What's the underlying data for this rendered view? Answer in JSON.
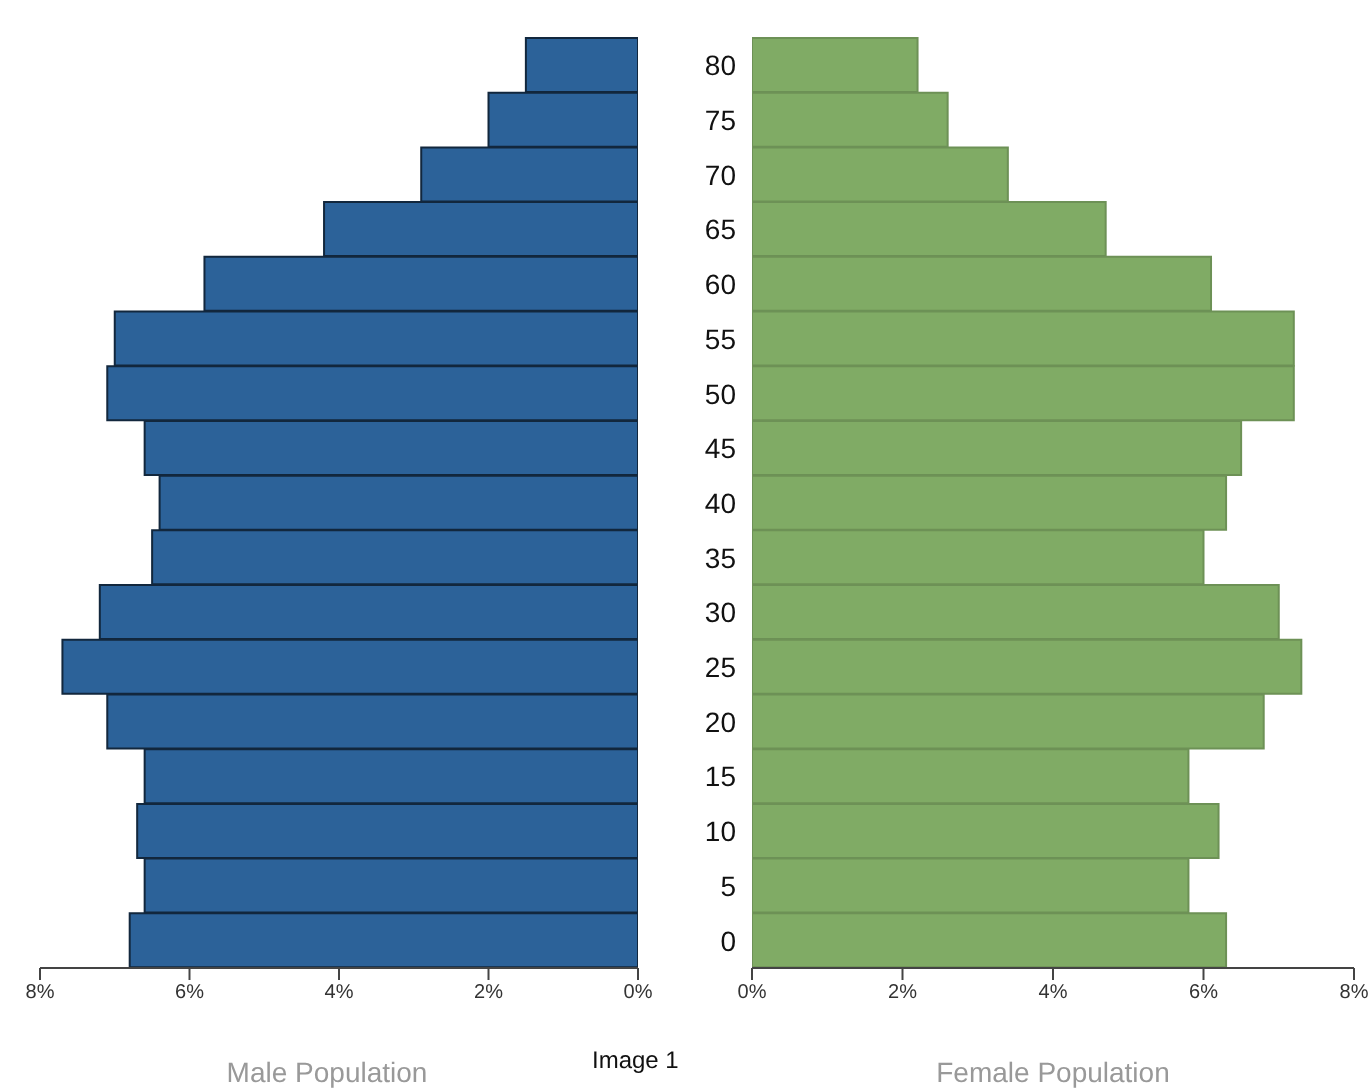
{
  "chart_data": [
    {
      "type": "bar",
      "orientation": "horizontal",
      "xlabel": "Male Population",
      "categories": [
        "80",
        "75",
        "70",
        "65",
        "60",
        "55",
        "50",
        "45",
        "40",
        "35",
        "30",
        "25",
        "20",
        "15",
        "10",
        "5",
        "0"
      ],
      "series": [
        {
          "color": "#2c6299",
          "values": [
            1.5,
            2.0,
            2.9,
            4.2,
            5.8,
            7.0,
            7.1,
            6.6,
            6.4,
            6.5,
            7.2,
            7.7,
            7.1,
            6.6,
            6.7,
            6.6,
            6.8
          ]
        }
      ],
      "xlim": [
        8,
        0
      ],
      "xticks": [
        {
          "value": 8,
          "label": "8%"
        },
        {
          "value": 6,
          "label": "6%"
        },
        {
          "value": 4,
          "label": "4%"
        },
        {
          "value": 2,
          "label": "2%"
        },
        {
          "value": 0,
          "label": "0%"
        }
      ],
      "tick_labels": "x",
      "grid": false,
      "legend": false
    },
    {
      "type": "bar",
      "orientation": "horizontal",
      "xlabel": "Female Population",
      "annotations": [
        "Image 1"
      ],
      "categories": [
        "80",
        "75",
        "70",
        "65",
        "60",
        "55",
        "50",
        "45",
        "40",
        "35",
        "30",
        "25",
        "20",
        "15",
        "10",
        "5",
        "0"
      ],
      "series": [
        {
          "color": "#80ab65",
          "values": [
            2.2,
            2.6,
            3.4,
            4.7,
            6.1,
            7.2,
            7.2,
            6.5,
            6.3,
            6.0,
            7.0,
            7.3,
            6.8,
            5.8,
            6.2,
            5.8,
            6.3
          ]
        }
      ],
      "xlim": [
        0,
        8
      ],
      "xticks": [
        {
          "value": 0,
          "label": "0%"
        },
        {
          "value": 2,
          "label": "2%"
        },
        {
          "value": 4,
          "label": "4%"
        },
        {
          "value": 6,
          "label": "6%"
        },
        {
          "value": 8,
          "label": "8%"
        }
      ],
      "grid": false,
      "legend": false
    }
  ]
}
